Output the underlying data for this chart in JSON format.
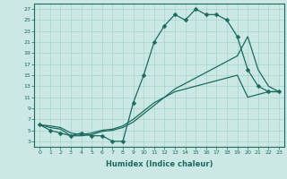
{
  "title": "",
  "xlabel": "Humidex (Indice chaleur)",
  "bg_color": "#cce8e4",
  "line_color": "#1a6b5e",
  "grid_color": "#a8d5ce",
  "xlim": [
    -0.5,
    23.5
  ],
  "ylim": [
    2,
    28
  ],
  "xticks": [
    0,
    1,
    2,
    3,
    4,
    5,
    6,
    7,
    8,
    9,
    10,
    11,
    12,
    13,
    14,
    15,
    16,
    17,
    18,
    19,
    20,
    21,
    22,
    23
  ],
  "yticks": [
    3,
    5,
    7,
    9,
    11,
    13,
    15,
    17,
    19,
    21,
    23,
    25,
    27
  ],
  "line1_x": [
    0,
    1,
    2,
    3,
    4,
    5,
    6,
    7,
    8,
    9,
    10,
    11,
    12,
    13,
    14,
    15,
    16,
    17,
    18,
    19,
    20,
    21,
    22,
    23
  ],
  "line1_y": [
    6,
    5,
    4.5,
    4,
    4.5,
    4,
    4,
    3,
    3,
    10,
    15,
    21,
    24,
    26,
    25,
    27,
    26,
    26,
    25,
    22,
    16,
    13,
    12,
    12
  ],
  "line2_x": [
    0,
    1,
    2,
    3,
    4,
    5,
    6,
    7,
    8,
    9,
    10,
    11,
    12,
    13,
    14,
    15,
    16,
    17,
    18,
    19,
    20,
    21,
    22,
    23
  ],
  "line2_y": [
    6,
    5.5,
    5.2,
    4,
    4,
    4.2,
    4.8,
    5,
    5.5,
    6.5,
    8,
    9.5,
    11,
    12.5,
    13.5,
    14.5,
    15.5,
    16.5,
    17.5,
    18.5,
    22,
    16,
    13,
    12
  ],
  "line3_x": [
    0,
    1,
    2,
    3,
    4,
    5,
    6,
    7,
    8,
    9,
    10,
    11,
    12,
    13,
    14,
    15,
    16,
    17,
    18,
    19,
    20,
    21,
    22,
    23
  ],
  "line3_y": [
    6,
    5.8,
    5.5,
    4.5,
    4.2,
    4.5,
    5.0,
    5.2,
    5.8,
    7,
    8.5,
    10,
    11,
    12,
    12.5,
    13,
    13.5,
    14,
    14.5,
    15,
    11,
    11.5,
    12,
    12
  ],
  "markersize": 2.5
}
